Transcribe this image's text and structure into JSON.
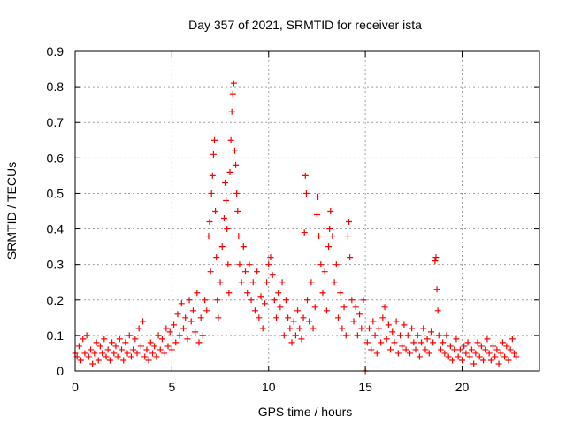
{
  "chart_data": {
    "type": "scatter",
    "title": "Day 357 of 2021, SRMTID for receiver ista",
    "xlabel": "GPS time / hours",
    "ylabel": "SRMTID / TECUs",
    "xlim": [
      0,
      24
    ],
    "ylim": [
      0,
      0.9
    ],
    "xticks": [
      "0",
      "5",
      "10",
      "15",
      "20"
    ],
    "yticks": [
      "0",
      "0.1",
      "0.2",
      "0.3",
      "0.4",
      "0.5",
      "0.6",
      "0.7",
      "0.8",
      "0.9"
    ],
    "grid": true,
    "marker": "plus",
    "series_color": "#ff0000",
    "series": [
      {
        "name": "SRMTID",
        "points": [
          [
            0.0,
            0.05
          ],
          [
            0.1,
            0.04
          ],
          [
            0.2,
            0.07
          ],
          [
            0.3,
            0.03
          ],
          [
            0.4,
            0.09
          ],
          [
            0.5,
            0.05
          ],
          [
            0.6,
            0.1
          ],
          [
            0.7,
            0.04
          ],
          [
            0.8,
            0.06
          ],
          [
            0.9,
            0.02
          ],
          [
            1.0,
            0.05
          ],
          [
            1.1,
            0.08
          ],
          [
            1.2,
            0.03
          ],
          [
            1.3,
            0.07
          ],
          [
            1.4,
            0.05
          ],
          [
            1.5,
            0.09
          ],
          [
            1.6,
            0.04
          ],
          [
            1.7,
            0.06
          ],
          [
            1.8,
            0.03
          ],
          [
            1.9,
            0.08
          ],
          [
            2.0,
            0.05
          ],
          [
            2.1,
            0.07
          ],
          [
            2.2,
            0.04
          ],
          [
            2.3,
            0.09
          ],
          [
            2.4,
            0.06
          ],
          [
            2.5,
            0.03
          ],
          [
            2.6,
            0.08
          ],
          [
            2.7,
            0.05
          ],
          [
            2.8,
            0.1
          ],
          [
            2.9,
            0.04
          ],
          [
            3.0,
            0.06
          ],
          [
            3.1,
            0.09
          ],
          [
            3.2,
            0.05
          ],
          [
            3.3,
            0.12
          ],
          [
            3.4,
            0.07
          ],
          [
            3.5,
            0.14
          ],
          [
            3.6,
            0.04
          ],
          [
            3.7,
            0.06
          ],
          [
            3.8,
            0.03
          ],
          [
            3.9,
            0.08
          ],
          [
            4.0,
            0.05
          ],
          [
            4.1,
            0.07
          ],
          [
            4.2,
            0.04
          ],
          [
            4.3,
            0.1
          ],
          [
            4.4,
            0.06
          ],
          [
            4.5,
            0.09
          ],
          [
            4.6,
            0.05
          ],
          [
            4.7,
            0.12
          ],
          [
            4.8,
            0.07
          ],
          [
            4.9,
            0.11
          ],
          [
            5.0,
            0.06
          ],
          [
            5.1,
            0.13
          ],
          [
            5.2,
            0.08
          ],
          [
            5.3,
            0.16
          ],
          [
            5.4,
            0.1
          ],
          [
            5.5,
            0.19
          ],
          [
            5.6,
            0.12
          ],
          [
            5.7,
            0.15
          ],
          [
            5.8,
            0.09
          ],
          [
            5.9,
            0.2
          ],
          [
            6.0,
            0.14
          ],
          [
            6.1,
            0.17
          ],
          [
            6.2,
            0.11
          ],
          [
            6.3,
            0.22
          ],
          [
            6.4,
            0.08
          ],
          [
            6.5,
            0.15
          ],
          [
            6.6,
            0.1
          ],
          [
            6.7,
            0.2
          ],
          [
            6.8,
            0.17
          ],
          [
            6.9,
            0.38
          ],
          [
            6.95,
            0.42
          ],
          [
            7.0,
            0.28
          ],
          [
            7.05,
            0.5
          ],
          [
            7.1,
            0.55
          ],
          [
            7.15,
            0.61
          ],
          [
            7.2,
            0.65
          ],
          [
            7.25,
            0.45
          ],
          [
            7.3,
            0.32
          ],
          [
            7.35,
            0.2
          ],
          [
            7.4,
            0.15
          ],
          [
            7.5,
            0.25
          ],
          [
            7.6,
            0.35
          ],
          [
            7.7,
            0.43
          ],
          [
            7.75,
            0.53
          ],
          [
            7.8,
            0.48
          ],
          [
            7.85,
            0.4
          ],
          [
            7.9,
            0.3
          ],
          [
            7.95,
            0.22
          ],
          [
            8.0,
            0.56
          ],
          [
            8.05,
            0.65
          ],
          [
            8.1,
            0.73
          ],
          [
            8.15,
            0.78
          ],
          [
            8.2,
            0.81
          ],
          [
            8.25,
            0.62
          ],
          [
            8.3,
            0.58
          ],
          [
            8.35,
            0.5
          ],
          [
            8.4,
            0.45
          ],
          [
            8.45,
            0.38
          ],
          [
            8.5,
            0.3
          ],
          [
            8.6,
            0.25
          ],
          [
            8.7,
            0.35
          ],
          [
            8.8,
            0.28
          ],
          [
            8.9,
            0.22
          ],
          [
            9.0,
            0.3
          ],
          [
            9.1,
            0.2
          ],
          [
            9.2,
            0.25
          ],
          [
            9.3,
            0.17
          ],
          [
            9.4,
            0.28
          ],
          [
            9.5,
            0.15
          ],
          [
            9.6,
            0.21
          ],
          [
            9.7,
            0.12
          ],
          [
            9.8,
            0.19
          ],
          [
            9.9,
            0.25
          ],
          [
            10.0,
            0.3
          ],
          [
            10.1,
            0.32
          ],
          [
            10.2,
            0.27
          ],
          [
            10.3,
            0.2
          ],
          [
            10.4,
            0.15
          ],
          [
            10.5,
            0.22
          ],
          [
            10.6,
            0.18
          ],
          [
            10.7,
            0.25
          ],
          [
            10.8,
            0.1
          ],
          [
            10.9,
            0.2
          ],
          [
            11.0,
            0.15
          ],
          [
            11.1,
            0.12
          ],
          [
            11.2,
            0.08
          ],
          [
            11.3,
            0.14
          ],
          [
            11.4,
            0.1
          ],
          [
            11.5,
            0.17
          ],
          [
            11.6,
            0.12
          ],
          [
            11.7,
            0.09
          ],
          [
            11.8,
            0.15
          ],
          [
            11.85,
            0.39
          ],
          [
            11.9,
            0.55
          ],
          [
            11.95,
            0.5
          ],
          [
            12.0,
            0.2
          ],
          [
            12.1,
            0.14
          ],
          [
            12.2,
            0.25
          ],
          [
            12.3,
            0.12
          ],
          [
            12.4,
            0.18
          ],
          [
            12.5,
            0.44
          ],
          [
            12.55,
            0.49
          ],
          [
            12.6,
            0.38
          ],
          [
            12.7,
            0.3
          ],
          [
            12.8,
            0.22
          ],
          [
            12.9,
            0.28
          ],
          [
            13.0,
            0.17
          ],
          [
            13.1,
            0.35
          ],
          [
            13.15,
            0.4
          ],
          [
            13.2,
            0.45
          ],
          [
            13.3,
            0.38
          ],
          [
            13.4,
            0.25
          ],
          [
            13.5,
            0.3
          ],
          [
            13.6,
            0.15
          ],
          [
            13.7,
            0.22
          ],
          [
            13.8,
            0.12
          ],
          [
            13.9,
            0.18
          ],
          [
            14.0,
            0.1
          ],
          [
            14.1,
            0.38
          ],
          [
            14.15,
            0.42
          ],
          [
            14.2,
            0.32
          ],
          [
            14.3,
            0.2
          ],
          [
            14.4,
            0.14
          ],
          [
            14.5,
            0.18
          ],
          [
            14.6,
            0.1
          ],
          [
            14.7,
            0.16
          ],
          [
            14.8,
            0.12
          ],
          [
            14.9,
            0.2
          ],
          [
            15.0,
            0.0
          ],
          [
            15.1,
            0.08
          ],
          [
            15.2,
            0.12
          ],
          [
            15.3,
            0.06
          ],
          [
            15.4,
            0.14
          ],
          [
            15.5,
            0.1
          ],
          [
            15.6,
            0.05
          ],
          [
            15.7,
            0.12
          ],
          [
            15.8,
            0.08
          ],
          [
            15.9,
            0.15
          ],
          [
            16.0,
            0.18
          ],
          [
            16.1,
            0.09
          ],
          [
            16.2,
            0.13
          ],
          [
            16.3,
            0.06
          ],
          [
            16.4,
            0.11
          ],
          [
            16.5,
            0.08
          ],
          [
            16.6,
            0.14
          ],
          [
            16.7,
            0.05
          ],
          [
            16.8,
            0.1
          ],
          [
            16.9,
            0.07
          ],
          [
            17.0,
            0.13
          ],
          [
            17.1,
            0.06
          ],
          [
            17.2,
            0.1
          ],
          [
            17.3,
            0.05
          ],
          [
            17.4,
            0.12
          ],
          [
            17.5,
            0.08
          ],
          [
            17.6,
            0.06
          ],
          [
            17.7,
            0.1
          ],
          [
            17.8,
            0.04
          ],
          [
            17.9,
            0.08
          ],
          [
            18.0,
            0.12
          ],
          [
            18.1,
            0.06
          ],
          [
            18.2,
            0.09
          ],
          [
            18.3,
            0.05
          ],
          [
            18.4,
            0.11
          ],
          [
            18.5,
            0.08
          ],
          [
            18.6,
            0.31
          ],
          [
            18.65,
            0.32
          ],
          [
            18.7,
            0.23
          ],
          [
            18.75,
            0.17
          ],
          [
            18.8,
            0.1
          ],
          [
            18.9,
            0.06
          ],
          [
            19.0,
            0.08
          ],
          [
            19.1,
            0.05
          ],
          [
            19.2,
            0.1
          ],
          [
            19.3,
            0.04
          ],
          [
            19.4,
            0.07
          ],
          [
            19.5,
            0.03
          ],
          [
            19.6,
            0.06
          ],
          [
            19.7,
            0.09
          ],
          [
            19.8,
            0.04
          ],
          [
            19.9,
            0.06
          ],
          [
            20.0,
            0.03
          ],
          [
            20.1,
            0.07
          ],
          [
            20.2,
            0.05
          ],
          [
            20.3,
            0.08
          ],
          [
            20.4,
            0.04
          ],
          [
            20.5,
            0.06
          ],
          [
            20.6,
            0.02
          ],
          [
            20.7,
            0.05
          ],
          [
            20.8,
            0.08
          ],
          [
            20.9,
            0.04
          ],
          [
            21.0,
            0.07
          ],
          [
            21.1,
            0.03
          ],
          [
            21.2,
            0.06
          ],
          [
            21.3,
            0.09
          ],
          [
            21.4,
            0.05
          ],
          [
            21.5,
            0.03
          ],
          [
            21.6,
            0.07
          ],
          [
            21.7,
            0.04
          ],
          [
            21.8,
            0.06
          ],
          [
            21.9,
            0.02
          ],
          [
            22.0,
            0.05
          ],
          [
            22.1,
            0.08
          ],
          [
            22.2,
            0.04
          ],
          [
            22.3,
            0.07
          ],
          [
            22.4,
            0.03
          ],
          [
            22.5,
            0.06
          ],
          [
            22.6,
            0.09
          ],
          [
            22.7,
            0.05
          ],
          [
            22.8,
            0.04
          ]
        ]
      }
    ]
  }
}
